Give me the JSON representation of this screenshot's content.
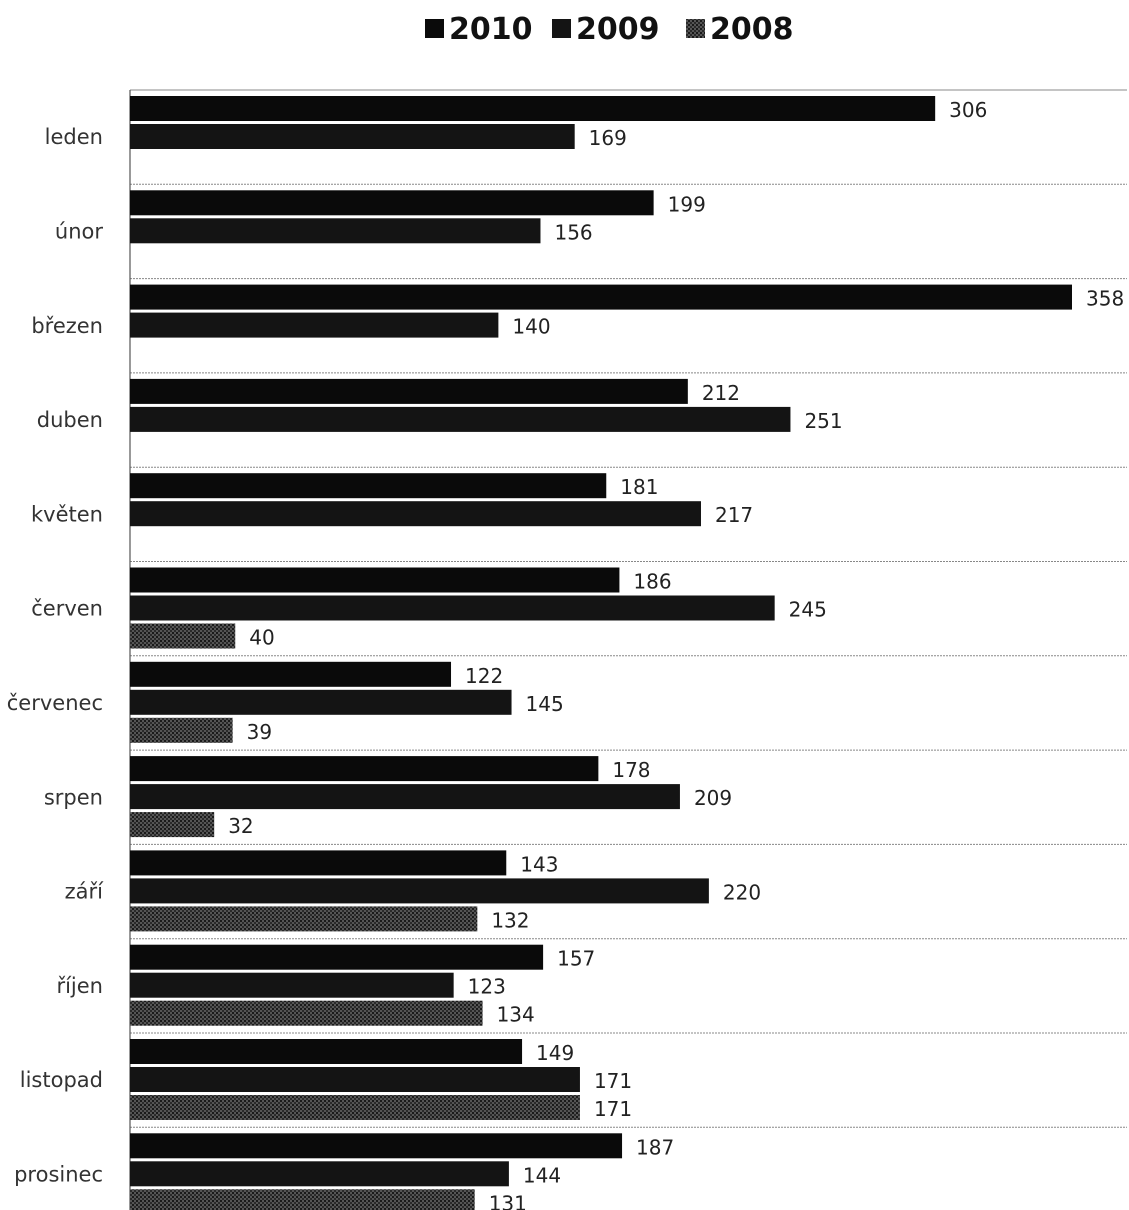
{
  "chart_data": {
    "type": "bar",
    "orientation": "horizontal",
    "title": "",
    "xlabel": "",
    "ylabel": "",
    "categories": [
      "leden",
      "únor",
      "březen",
      "duben",
      "květen",
      "červen",
      "červenec",
      "srpen",
      "září",
      "říjen",
      "listopad",
      "prosinec"
    ],
    "series": [
      {
        "name": "2010",
        "color": "#0a0a0a",
        "values": [
          306,
          199,
          358,
          212,
          181,
          186,
          122,
          178,
          143,
          157,
          149,
          187
        ]
      },
      {
        "name": "2009",
        "color": "#141414",
        "values": [
          169,
          156,
          140,
          251,
          217,
          245,
          145,
          209,
          220,
          123,
          171,
          144
        ]
      },
      {
        "name": "2008",
        "color": "#3a3a3a",
        "values": [
          null,
          null,
          null,
          null,
          null,
          40,
          39,
          32,
          132,
          134,
          171,
          131
        ]
      }
    ],
    "xlim": [
      0,
      358
    ],
    "legend": "top-center",
    "grid": false,
    "data_labels": true
  }
}
